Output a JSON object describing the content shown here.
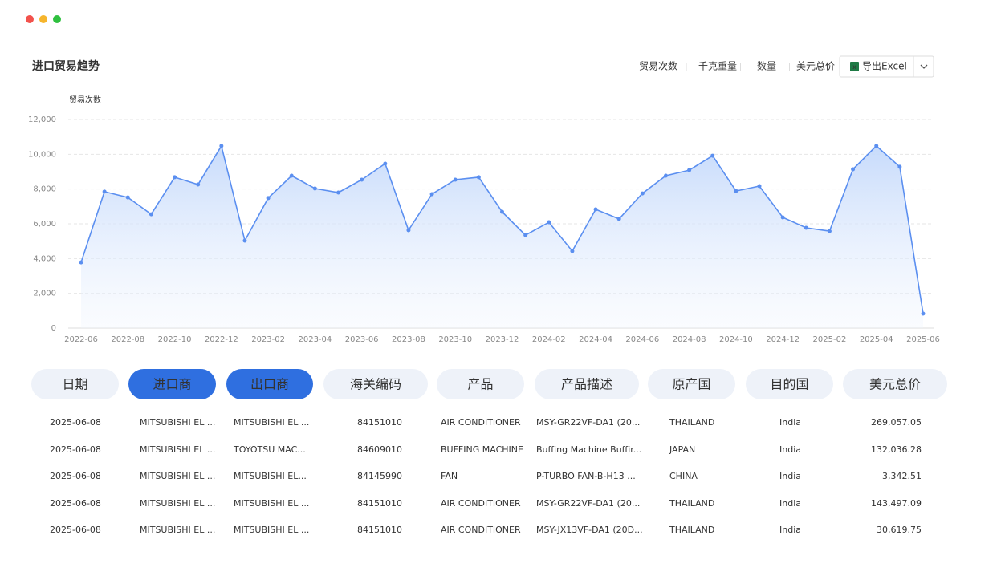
{
  "header": {
    "title": "进口贸易趋势",
    "metrics": [
      "贸易次数",
      "千克重量",
      "数量",
      "美元总价"
    ],
    "active_metric": 0,
    "export_button": "导出Excel"
  },
  "chart_data": {
    "type": "area",
    "y_label": "贸易次数",
    "color": "#5b8ff0",
    "fill": "#c4d9fb",
    "grid": true,
    "categories": [
      "2022-06",
      null,
      "2022-08",
      null,
      "2022-10",
      null,
      "2022-12",
      null,
      "2023-02",
      null,
      "2023-04",
      null,
      "2023-06",
      null,
      "2023-08",
      null,
      "2023-10",
      null,
      "2023-12",
      null,
      "2024-02",
      null,
      "2024-04",
      null,
      "2024-06",
      null,
      "2024-08",
      null,
      "2024-10",
      null,
      "2024-12",
      null,
      "2025-02",
      null,
      "2025-04",
      null,
      "2025-06"
    ],
    "values": [
      3780,
      7850,
      7520,
      6550,
      8680,
      8260,
      10480,
      5030,
      7480,
      8770,
      8030,
      7800,
      8540,
      9460,
      5630,
      7710,
      8540,
      8680,
      6690,
      5350,
      6090,
      4430,
      6830,
      6280,
      7750,
      8770,
      9090,
      9920,
      7890,
      8170,
      6370,
      5770,
      5580,
      9140,
      10480,
      9280,
      830
    ],
    "ylim": [
      0,
      12000
    ],
    "yticks": [
      0,
      {
        "value": 2000,
        "label": "2,000"
      },
      {
        "value": 4000,
        "label": "4,000"
      },
      {
        "value": 6000,
        "label": "6,000"
      },
      {
        "value": 8000,
        "label": "8,000"
      },
      {
        "value": 10000,
        "label": "10,000"
      },
      {
        "value": 12000,
        "label": "12,000"
      }
    ]
  },
  "table": {
    "headers": [
      "日期",
      "进口商",
      "出口商",
      "海关编码",
      "产品",
      "产品描述",
      "原产国",
      "目的国",
      "美元总价"
    ],
    "active_columns": [
      1,
      2
    ],
    "link_columns": [
      1,
      2,
      4
    ],
    "rows": [
      [
        "2025-06-08",
        "MITSUBISHI EL ...",
        "MITSUBISHI EL ...",
        "84151010",
        "AIR CONDITIONER",
        "MSY-GR22VF-DA1 (20...",
        "THAILAND",
        "India",
        "269,057.05"
      ],
      [
        "2025-06-08",
        "MITSUBISHI EL ...",
        "TOYOTSU MAC...",
        "84609010",
        "BUFFING MACHINE",
        "Buffing Machine Buffir...",
        "JAPAN",
        "India",
        "132,036.28"
      ],
      [
        "2025-06-08",
        "MITSUBISHI EL ...",
        "MITSUBISHI EL...",
        "84145990",
        "FAN",
        "P-TURBO FAN-B-H13 ...",
        "CHINA",
        "India",
        "3,342.51"
      ],
      [
        "2025-06-08",
        "MITSUBISHI EL ...",
        "MITSUBISHI EL ...",
        "84151010",
        "AIR CONDITIONER",
        "MSY-GR22VF-DA1 (20...",
        "THAILAND",
        "India",
        "143,497.09"
      ],
      [
        "2025-06-08",
        "MITSUBISHI EL ...",
        "MITSUBISHI EL ...",
        "84151010",
        "AIR CONDITIONER",
        "MSY-JX13VF-DA1 (20D...",
        "THAILAND",
        "India",
        "30,619.75"
      ]
    ]
  }
}
